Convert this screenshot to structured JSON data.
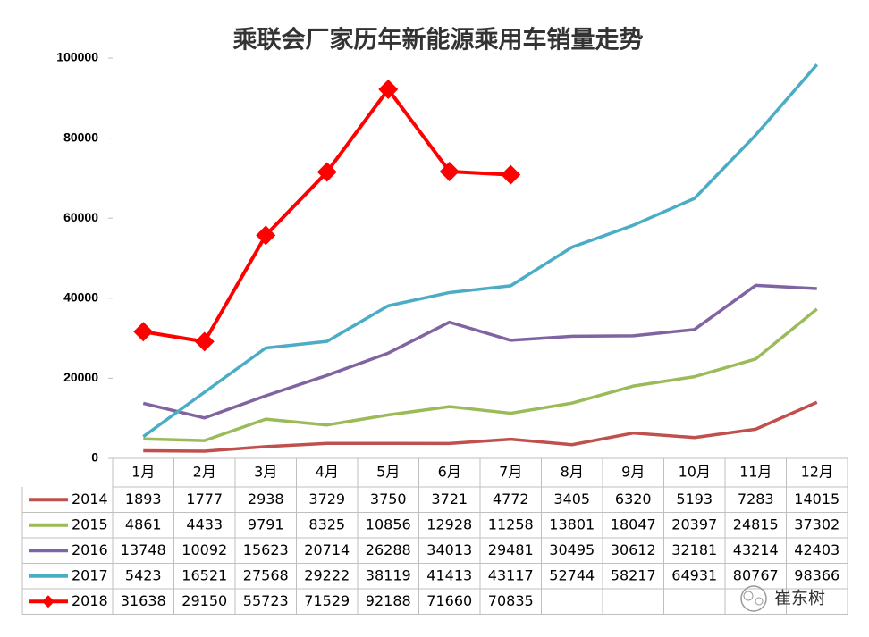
{
  "chart_data": {
    "type": "line",
    "title": "乘联会厂家历年新能源乘用车销量走势",
    "categories": [
      "1月",
      "2月",
      "3月",
      "4月",
      "5月",
      "6月",
      "7月",
      "8月",
      "9月",
      "10月",
      "11月",
      "12月"
    ],
    "series": [
      {
        "name": "2014",
        "color": "#c0504d",
        "values": [
          1893,
          1777,
          2938,
          3729,
          3750,
          3721,
          4772,
          3405,
          6320,
          5193,
          7283,
          14015
        ]
      },
      {
        "name": "2015",
        "color": "#9bbb59",
        "values": [
          4861,
          4433,
          9791,
          8325,
          10856,
          12928,
          11258,
          13801,
          18047,
          20397,
          24815,
          37302
        ]
      },
      {
        "name": "2016",
        "color": "#8064a2",
        "values": [
          13748,
          10092,
          15623,
          20714,
          26288,
          34013,
          29481,
          30495,
          30612,
          32181,
          43214,
          42403
        ]
      },
      {
        "name": "2017",
        "color": "#4bacc6",
        "values": [
          5423,
          16521,
          27568,
          29222,
          38119,
          41413,
          43117,
          52744,
          58217,
          64931,
          80767,
          98366
        ]
      },
      {
        "name": "2018",
        "color": "#ff0000",
        "marker": "diamond",
        "values": [
          31638,
          29150,
          55723,
          71529,
          92188,
          71660,
          70835,
          null,
          null,
          null,
          null,
          null
        ]
      }
    ],
    "ylim": [
      0,
      100000
    ],
    "yticks": [
      0,
      20000,
      40000,
      60000,
      80000,
      100000
    ],
    "grid": false,
    "watermark": "崔东树"
  }
}
